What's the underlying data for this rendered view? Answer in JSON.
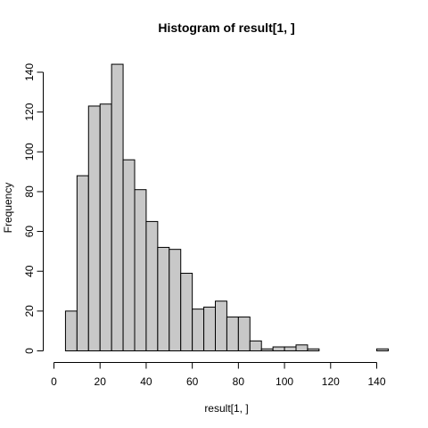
{
  "chart_data": {
    "type": "bar",
    "title": "Histogram of result[1, ]",
    "xlabel": "result[1, ]",
    "ylabel": "Frequency",
    "xlim": [
      0,
      145
    ],
    "ylim": [
      0,
      144
    ],
    "bin_width": 5,
    "bin_starts": [
      5,
      10,
      15,
      20,
      25,
      30,
      35,
      40,
      45,
      50,
      55,
      60,
      65,
      70,
      75,
      80,
      85,
      90,
      95,
      100,
      105,
      110,
      115,
      120,
      125,
      130,
      135,
      140
    ],
    "values": [
      20,
      88,
      123,
      124,
      144,
      96,
      81,
      65,
      52,
      51,
      39,
      21,
      22,
      25,
      17,
      17,
      5,
      1,
      2,
      2,
      3,
      1,
      0,
      0,
      0,
      0,
      0,
      1
    ],
    "x_ticks": [
      0,
      20,
      40,
      60,
      80,
      100,
      120,
      140
    ],
    "y_ticks": [
      0,
      20,
      40,
      60,
      80,
      100,
      120,
      140
    ],
    "grid": false,
    "bar_color": "#c8c8c8",
    "edge_color": "#000000"
  }
}
